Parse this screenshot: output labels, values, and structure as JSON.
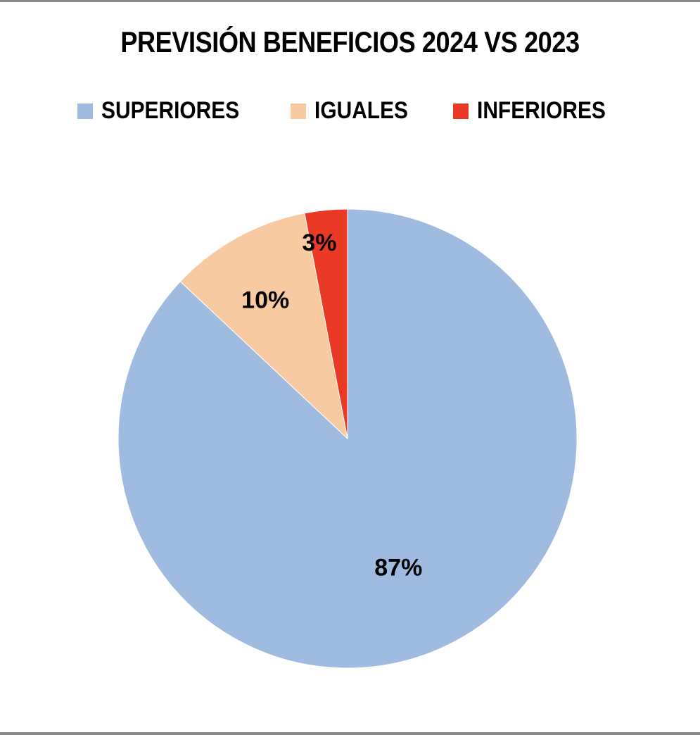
{
  "chart_data": {
    "type": "pie",
    "title": "PREVISIÓN BENEFICIOS 2024 VS 2023",
    "categories": [
      "SUPERIORES",
      "IGUALES",
      "INFERIORES"
    ],
    "values": [
      87,
      10,
      3
    ],
    "data_labels": [
      "87%",
      "10%",
      "3%"
    ],
    "colors": [
      "#9fbbe0",
      "#f8caa2",
      "#ea3a25"
    ],
    "legend_position": "top",
    "start_angle": "12 o'clock, clockwise"
  }
}
